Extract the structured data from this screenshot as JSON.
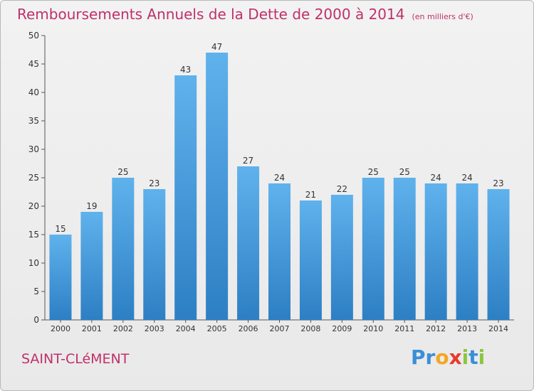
{
  "header": {
    "title": "Remboursements Annuels de la Dette de 2000 à 2014",
    "unit": "(en milliers d'€)"
  },
  "footer": {
    "city": "SAINT-CLéMENT",
    "logo_text": "Proxiti"
  },
  "colors": {
    "accent": "#c0306a",
    "bar_top": "#5fb2ec",
    "bar_bottom": "#2d7fc4",
    "logo": [
      "#3a8fd8",
      "#3a8fd8",
      "#f5a623",
      "#e63b2e",
      "#8cc63f",
      "#3a8fd8",
      "#8cc63f"
    ]
  },
  "chart_data": {
    "type": "bar",
    "title": "Remboursements Annuels de la Dette de 2000 à 2014",
    "xlabel": "",
    "ylabel": "",
    "ylim": [
      0,
      50
    ],
    "yticks": [
      0,
      5,
      10,
      15,
      20,
      25,
      30,
      35,
      40,
      45,
      50
    ],
    "grid": false,
    "categories": [
      "2000",
      "2001",
      "2002",
      "2003",
      "2004",
      "2005",
      "2006",
      "2007",
      "2008",
      "2009",
      "2010",
      "2011",
      "2012",
      "2013",
      "2014"
    ],
    "values": [
      15,
      19,
      25,
      23,
      43,
      47,
      27,
      24,
      21,
      22,
      25,
      25,
      24,
      24,
      23
    ]
  }
}
